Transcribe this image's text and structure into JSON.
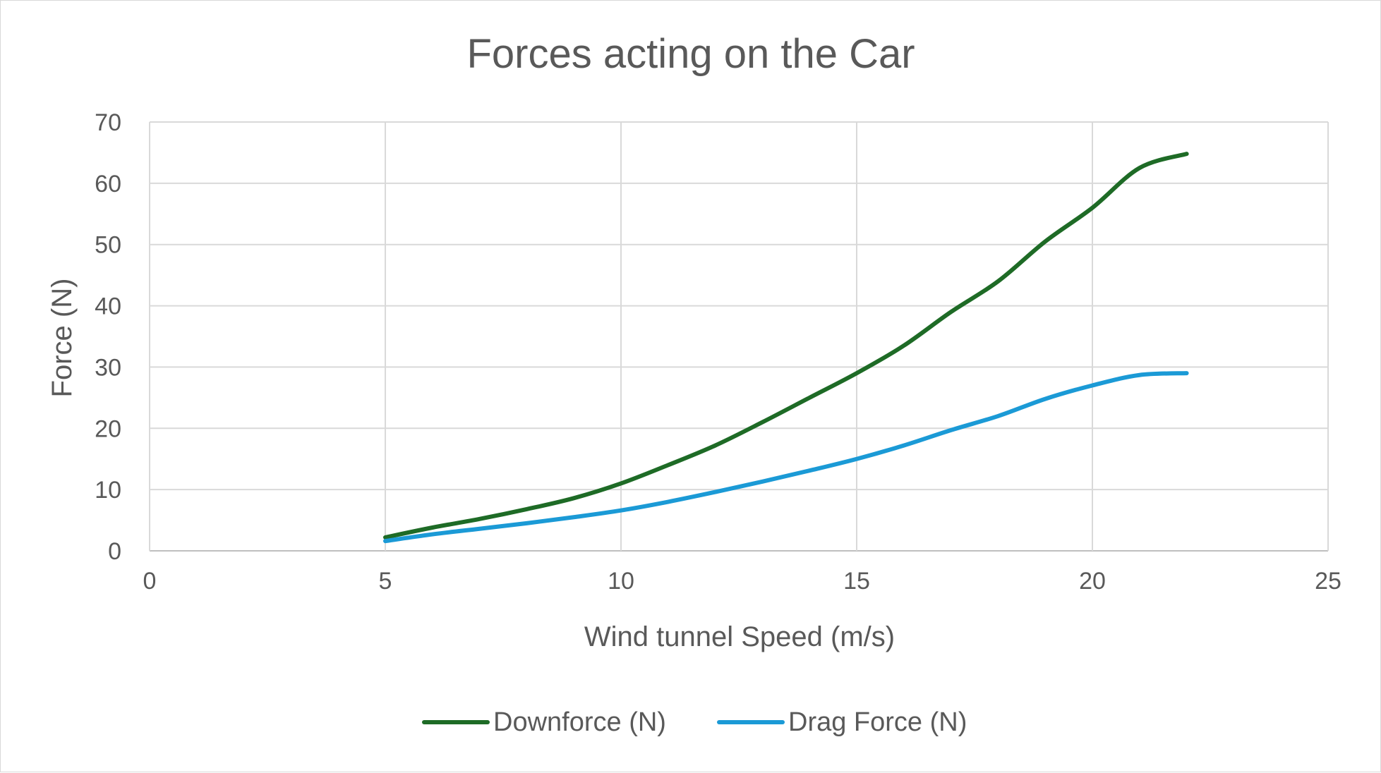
{
  "chart_data": {
    "type": "line",
    "title": "Forces acting on the  Car",
    "xlabel": "Wind tunnel Speed (m/s)",
    "ylabel": "Force (N)",
    "xlim": [
      0,
      25
    ],
    "ylim": [
      0,
      70
    ],
    "x_ticks": [
      "0",
      "5",
      "10",
      "15",
      "20",
      "25"
    ],
    "y_ticks": [
      "0",
      "10",
      "20",
      "30",
      "40",
      "50",
      "60",
      "70"
    ],
    "grid": true,
    "legend_position": "bottom",
    "series": [
      {
        "name": "Downforce (N)",
        "color": "#1e6b26",
        "x": [
          5,
          6,
          7,
          8,
          9,
          10,
          11,
          12,
          13,
          14,
          15,
          16,
          17,
          18,
          19,
          20,
          21,
          22
        ],
        "y": [
          2.2,
          3.8,
          5.2,
          6.8,
          8.6,
          11.0,
          14.0,
          17.2,
          21.0,
          25.0,
          29.0,
          33.5,
          39.0,
          44.0,
          50.5,
          56.0,
          62.5,
          64.8
        ]
      },
      {
        "name": "Drag Force (N)",
        "color": "#1b9ad6",
        "x": [
          5,
          6,
          7,
          8,
          9,
          10,
          11,
          12,
          13,
          14,
          15,
          16,
          17,
          18,
          19,
          20,
          21,
          22
        ],
        "y": [
          1.6,
          2.7,
          3.6,
          4.5,
          5.5,
          6.6,
          8.0,
          9.6,
          11.3,
          13.1,
          15.0,
          17.2,
          19.7,
          22.0,
          24.8,
          27.0,
          28.7,
          29.0
        ]
      }
    ]
  }
}
